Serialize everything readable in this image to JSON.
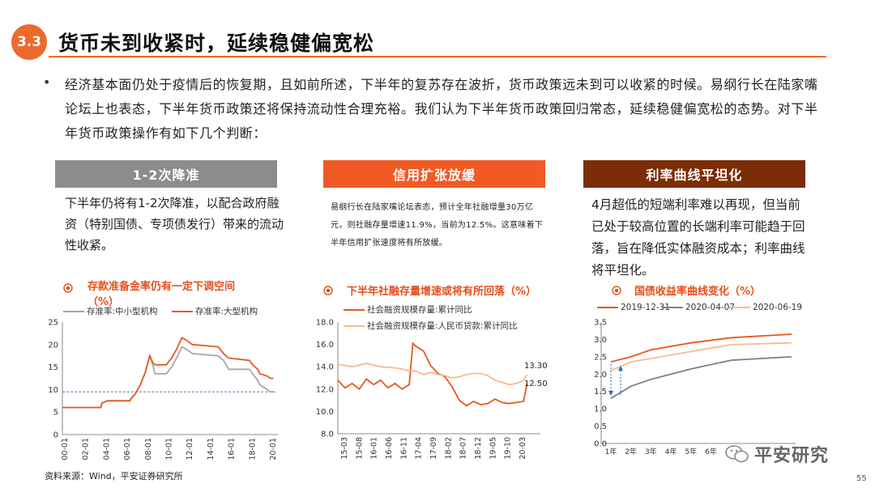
{
  "header": {
    "section": "3.3",
    "title": "货币未到收紧时，延续稳健偏宽松"
  },
  "intro": {
    "bullet": "•",
    "text": "经济基本面仍处于疫情后的恢复期，且如前所述，下半年的复苏存在波折，货币政策远未到可以收紧的时候。易纲行长在陆家嘴论坛上也表态，下半年货币政策还将保持流动性合理充裕。我们认为下半年货币政策回归常态，延续稳健偏宽松的态势。对下半年货币政策操作有如下几个判断："
  },
  "columns": [
    {
      "header": "1-2次降准",
      "color": "#8c8c8c",
      "text": "下半年仍将有1-2次降准，以配合政府融资（特别国债、专项债发行）带来的流动性收紧。"
    },
    {
      "header": "信用扩张放缓",
      "color": "#f15a24",
      "text": "易纲行长在陆家嘴论坛表态，预计全年社融增量30万亿元，则社融存量增速11.9%，当前为12.5%。这意味着下半年信用扩张速度将有所放缓。"
    },
    {
      "header": "利率曲线平坦化",
      "color": "#7b2d06",
      "text": "4月超低的短端利率难以再现，但当前已处于较高位置的长端利率可能趋于回落，旨在降低实体融资成本；利率曲线将平坦化。"
    }
  ],
  "chart_data": [
    {
      "type": "line",
      "title": "存款准备金率仍有一定下调空间",
      "title_unit": "（%）",
      "ylim": [
        0,
        25
      ],
      "yticks": [
        "0",
        "5",
        "10",
        "15",
        "20",
        "25"
      ],
      "xticks": [
        "00-01",
        "02-01",
        "04-01",
        "06-01",
        "08-01",
        "10-01",
        "12-01",
        "14-01",
        "16-01",
        "18-01",
        "20-01"
      ],
      "reference_line": 9.5,
      "series": [
        {
          "name": "存准率:中小型机构",
          "color": "#a6a6a6",
          "points": [
            [
              2000,
              6
            ],
            [
              2003.7,
              6
            ],
            [
              2003.8,
              7
            ],
            [
              2004.3,
              7.5
            ],
            [
              2006.5,
              7.5
            ],
            [
              2006.6,
              8
            ],
            [
              2007,
              9
            ],
            [
              2007.5,
              11
            ],
            [
              2008,
              14
            ],
            [
              2008.4,
              17.5
            ],
            [
              2008.7,
              15.5
            ],
            [
              2008.9,
              13.5
            ],
            [
              2010,
              13.5
            ],
            [
              2010.5,
              15
            ],
            [
              2011,
              17
            ],
            [
              2011.5,
              19.5
            ],
            [
              2011.9,
              19
            ],
            [
              2012.5,
              18
            ],
            [
              2015,
              17.5
            ],
            [
              2015.5,
              16.5
            ],
            [
              2016,
              14.5
            ],
            [
              2018,
              14.5
            ],
            [
              2018.3,
              13.5
            ],
            [
              2018.8,
              12
            ],
            [
              2019,
              11
            ],
            [
              2019.7,
              10
            ],
            [
              2020,
              9.5
            ],
            [
              2020.3,
              9.5
            ]
          ]
        },
        {
          "name": "存准率:大型机构",
          "color": "#e8581f",
          "points": [
            [
              2000,
              6
            ],
            [
              2003.7,
              6
            ],
            [
              2003.8,
              7
            ],
            [
              2004.3,
              7.5
            ],
            [
              2006.5,
              7.5
            ],
            [
              2006.6,
              8
            ],
            [
              2007,
              9
            ],
            [
              2007.5,
              11
            ],
            [
              2008,
              14
            ],
            [
              2008.4,
              17.5
            ],
            [
              2008.7,
              16
            ],
            [
              2008.9,
              15.5
            ],
            [
              2010,
              15.5
            ],
            [
              2010.5,
              17
            ],
            [
              2011,
              19
            ],
            [
              2011.5,
              21.5
            ],
            [
              2011.9,
              21
            ],
            [
              2012.5,
              20
            ],
            [
              2015,
              19.5
            ],
            [
              2015.5,
              18
            ],
            [
              2016,
              17
            ],
            [
              2018,
              16.5
            ],
            [
              2018.3,
              15.5
            ],
            [
              2018.8,
              14.5
            ],
            [
              2019,
              13.5
            ],
            [
              2019.7,
              13
            ],
            [
              2020,
              12.5
            ],
            [
              2020.3,
              12.5
            ]
          ]
        }
      ]
    },
    {
      "type": "line",
      "title": "下半年社融存量增速或将有所回落（%）",
      "ylim": [
        8,
        18
      ],
      "yticks": [
        "8.0",
        "10.0",
        "12.0",
        "14.0",
        "16.0",
        "18.0"
      ],
      "xticks": [
        "15-03",
        "15-08",
        "16-01",
        "16-06",
        "16-11",
        "17-04",
        "17-09",
        "18-02",
        "18-07",
        "18-12",
        "19-05",
        "19-10",
        "20-03"
      ],
      "annotations": [
        "13.30",
        "12.50"
      ],
      "series": [
        {
          "name": "社会融资规模存量:累计同比",
          "color": "#e8581f",
          "points": [
            [
              0,
              12.8
            ],
            [
              2,
              12.1
            ],
            [
              4,
              12.5
            ],
            [
              6,
              12.0
            ],
            [
              8,
              12.9
            ],
            [
              10,
              12.4
            ],
            [
              12,
              12.8
            ],
            [
              14,
              12.1
            ],
            [
              16,
              12.5
            ],
            [
              18,
              12.0
            ],
            [
              20,
              12.4
            ],
            [
              21,
              16.1
            ],
            [
              22,
              15.8
            ],
            [
              24,
              15.4
            ],
            [
              26,
              14.1
            ],
            [
              28,
              13.4
            ],
            [
              30,
              13.1
            ],
            [
              32,
              12.2
            ],
            [
              34,
              11.0
            ],
            [
              36,
              10.5
            ],
            [
              38,
              10.9
            ],
            [
              40,
              10.6
            ],
            [
              42,
              10.7
            ],
            [
              44,
              11.1
            ],
            [
              46,
              10.8
            ],
            [
              48,
              10.7
            ],
            [
              50,
              10.8
            ],
            [
              52,
              10.9
            ],
            [
              53,
              12.5
            ]
          ]
        },
        {
          "name": "社会融资规模存量:人民币贷款:累计同比",
          "color": "#f8b990",
          "points": [
            [
              0,
              14.2
            ],
            [
              4,
              14.0
            ],
            [
              8,
              14.3
            ],
            [
              12,
              14.0
            ],
            [
              16,
              13.9
            ],
            [
              18,
              13.8
            ],
            [
              20,
              13.6
            ],
            [
              22,
              13.6
            ],
            [
              24,
              13.3
            ],
            [
              26,
              13.5
            ],
            [
              28,
              13.3
            ],
            [
              30,
              13.2
            ],
            [
              32,
              13.0
            ],
            [
              34,
              13.1
            ],
            [
              36,
              13.3
            ],
            [
              38,
              13.4
            ],
            [
              40,
              13.4
            ],
            [
              42,
              13.2
            ],
            [
              44,
              12.8
            ],
            [
              46,
              12.6
            ],
            [
              48,
              12.4
            ],
            [
              50,
              12.5
            ],
            [
              52,
              12.8
            ],
            [
              53,
              13.3
            ]
          ]
        }
      ]
    },
    {
      "type": "line",
      "title": "国债收益率曲线变化（%）",
      "ylim": [
        0,
        3.5
      ],
      "yticks": [
        "0.0",
        "0.5",
        "1.0",
        "1.5",
        "2.0",
        "2.5",
        "3.0",
        "3.5"
      ],
      "xticks": [
        "1年",
        "2年",
        "3年",
        "4年",
        "5年",
        "6年"
      ],
      "series": [
        {
          "name": "2019-12-31",
          "color": "#e8581f",
          "points": [
            [
              1,
              2.35
            ],
            [
              2,
              2.5
            ],
            [
              3,
              2.7
            ],
            [
              5,
              2.9
            ],
            [
              7,
              3.05
            ],
            [
              10,
              3.15
            ]
          ]
        },
        {
          "name": "2020-04-07",
          "color": "#7f7f7f",
          "points": [
            [
              1,
              1.3
            ],
            [
              2,
              1.65
            ],
            [
              3,
              1.85
            ],
            [
              5,
              2.15
            ],
            [
              7,
              2.4
            ],
            [
              10,
              2.5
            ]
          ]
        },
        {
          "name": "2020-06-19",
          "color": "#f8b990",
          "points": [
            [
              1,
              2.1
            ],
            [
              2,
              2.35
            ],
            [
              3,
              2.45
            ],
            [
              5,
              2.65
            ],
            [
              7,
              2.85
            ],
            [
              10,
              2.9
            ]
          ]
        }
      ]
    }
  ],
  "footer": {
    "source": "资料来源：Wind，平安证券研究所",
    "page": "55",
    "brand": "平安研究"
  }
}
